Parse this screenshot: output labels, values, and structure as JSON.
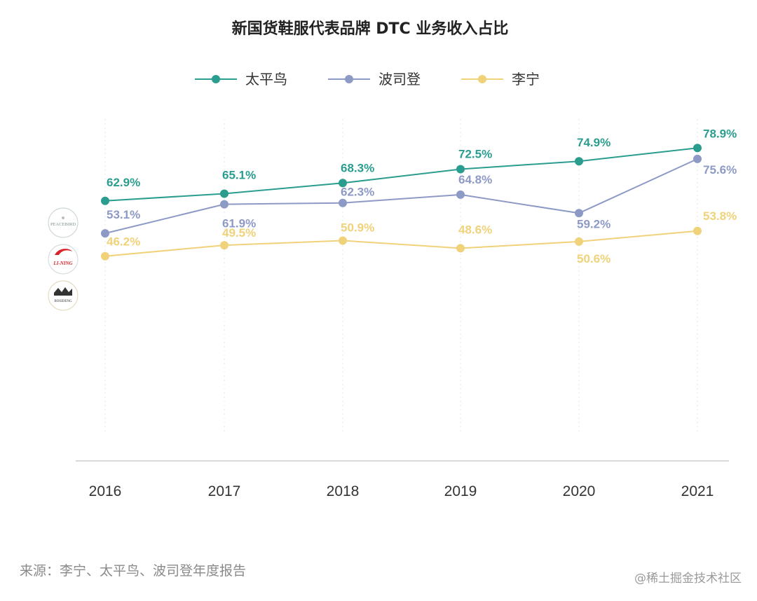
{
  "chart_data": {
    "type": "line",
    "title": "新国货鞋服代表品牌 DTC 业务收入占比",
    "categories": [
      "2016",
      "2017",
      "2018",
      "2019",
      "2020",
      "2021"
    ],
    "ylim": [
      0,
      100
    ],
    "grid": "vertical dotted",
    "legend_position": "top-center",
    "series": [
      {
        "name": "太平鸟",
        "color": "#2a9d8f",
        "values": [
          62.9,
          65.1,
          68.3,
          72.5,
          74.9,
          78.9
        ],
        "labels": [
          "62.9%",
          "65.1%",
          "68.3%",
          "72.5%",
          "74.9%",
          "78.9%"
        ]
      },
      {
        "name": "波司登",
        "color": "#8e9ac6",
        "values": [
          53.1,
          61.9,
          62.3,
          64.8,
          59.2,
          75.6
        ],
        "labels": [
          "53.1%",
          "61.9%",
          "62.3%",
          "64.8%",
          "59.2%",
          "75.6%"
        ]
      },
      {
        "name": "李宁",
        "color": "#f0d27a",
        "values": [
          46.2,
          49.5,
          50.9,
          48.6,
          50.6,
          53.8
        ],
        "labels": [
          "46.2%",
          "49.5%",
          "50.9%",
          "48.6%",
          "50.6%",
          "53.8%"
        ]
      }
    ]
  },
  "logos": {
    "peacebird": "PEACEBIRD",
    "lining": "LI-NING",
    "bosideng": "BOSIDENG"
  },
  "source": "来源：李宁、太平鸟、波司登年度报告",
  "watermark": "@稀土掘金技术社区"
}
